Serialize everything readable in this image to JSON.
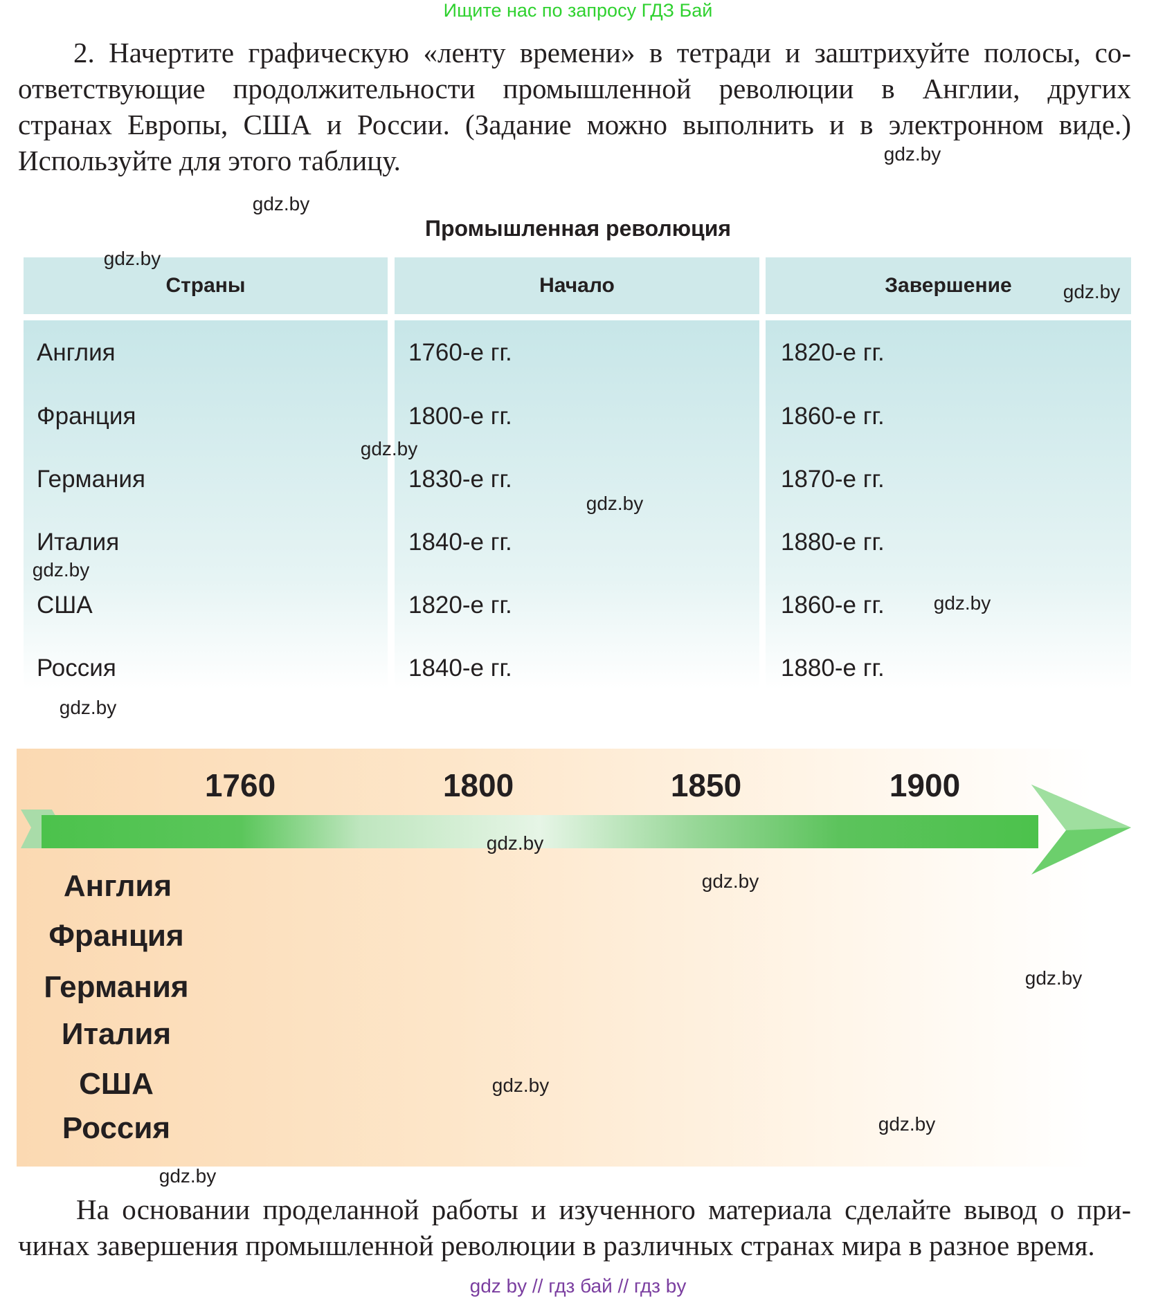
{
  "header_note": "Ищите нас по запросу ГДЗ Бай",
  "task": {
    "lines": [
      "2. Начертите графическую «ленту времени» в тетради и заштрихуйте полосы, со-",
      "ответствующие продолжительности промышленной революции в Англии, других",
      "странах Европы, США и России. (Задание можно выполнить и в электронном виде.)",
      "Используйте для этого таблицу."
    ]
  },
  "table": {
    "title": "Промышленная революция",
    "headers": [
      "Страны",
      "Начало",
      "Завершение"
    ],
    "rows": [
      [
        "Англия",
        "1760-е гг.",
        "1820-е гг."
      ],
      [
        "Франция",
        "1800-е гг.",
        "1860-е гг."
      ],
      [
        "Германия",
        "1830-е гг.",
        "1870-е гг."
      ],
      [
        "Италия",
        "1840-е гг.",
        "1880-е гг."
      ],
      [
        "США",
        "1820-е гг.",
        "1860-е гг."
      ],
      [
        "Россия",
        "1840-е гг.",
        "1880-е гг."
      ]
    ]
  },
  "timeline": {
    "years": [
      "1760",
      "1800",
      "1850",
      "1900"
    ],
    "countries": [
      "Англия",
      "Франция",
      "Германия",
      "Италия",
      "США",
      "Россия"
    ],
    "colors": {
      "arrow": "#4cc24c",
      "background": "#fbd9b2"
    }
  },
  "conclusion": {
    "lines": [
      "На основании проделанной работы и изученного материала сделайте вывод о при-",
      "чинах завершения промышленной революции в различных странах мира в разное время."
    ]
  },
  "watermark": "gdz.by",
  "footer": "gdz by  //  гдз бай  //  гдз by"
}
